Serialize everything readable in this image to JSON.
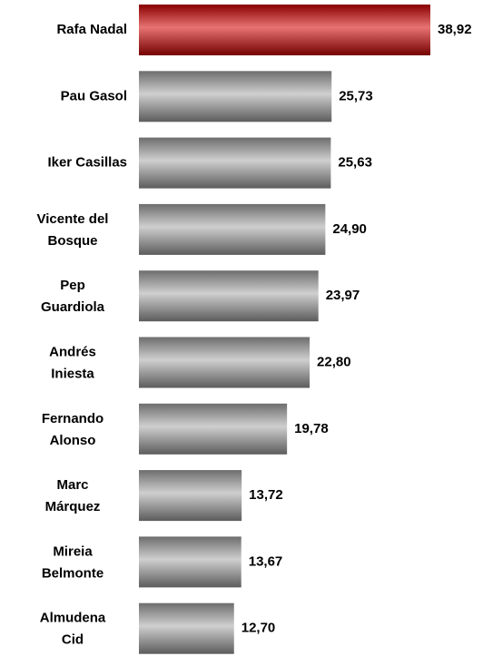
{
  "chart_data": {
    "type": "barh",
    "categories": [
      "Rafa Nadal",
      "Pau Gasol",
      "Iker Casillas",
      "Vicente del Bosque",
      "Pep Guardiola",
      "Andrés Iniesta",
      "Fernando Alonso",
      "Marc Márquez",
      "Mireia Belmonte",
      "Almudena Cid"
    ],
    "values": [
      38.92,
      25.73,
      25.63,
      24.9,
      23.97,
      22.8,
      19.78,
      13.72,
      13.67,
      12.7
    ],
    "value_labels": [
      "38,92",
      "25,73",
      "25,63",
      "24,90",
      "23,97",
      "22,80",
      "19,78",
      "13,72",
      "13,67",
      "12,70"
    ],
    "colors": [
      "#d40000",
      "#a8a8a8",
      "#a8a8a8",
      "#a8a8a8",
      "#a8a8a8",
      "#a8a8a8",
      "#a8a8a8",
      "#a8a8a8",
      "#a8a8a8",
      "#a8a8a8"
    ]
  }
}
